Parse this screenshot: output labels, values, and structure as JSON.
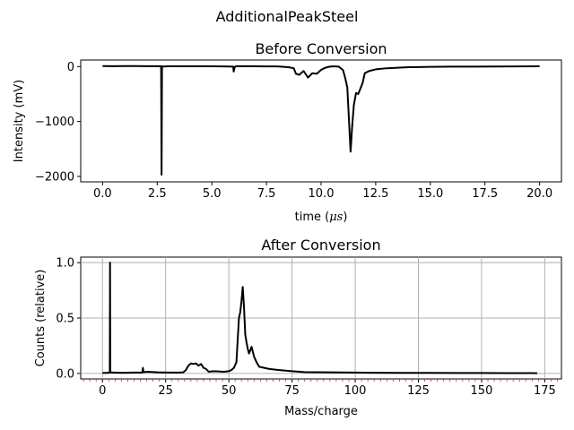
{
  "figure": {
    "suptitle": "AdditionalPeakSteel"
  },
  "colors": {
    "line": "#000000",
    "grid": "#b0b0b0",
    "minor_tick": "#d62728",
    "background": "#ffffff"
  },
  "chart_data": [
    {
      "type": "line",
      "title": "Before Conversion",
      "xlabel_text": "time (",
      "xlabel_unit": "μs",
      "xlabel_close": ")",
      "ylabel": "Intensity (mV)",
      "xlim": [
        -1.0,
        21.0
      ],
      "ylim": [
        -2100,
        120
      ],
      "xticks": [
        0.0,
        2.5,
        5.0,
        7.5,
        10.0,
        12.5,
        15.0,
        17.5,
        20.0
      ],
      "xtick_labels": [
        "0.0",
        "2.5",
        "5.0",
        "7.5",
        "10.0",
        "12.5",
        "15.0",
        "17.5",
        "20.0"
      ],
      "yticks": [
        0,
        -1000,
        -2000
      ],
      "ytick_labels": [
        "0",
        "−1000",
        "−2000"
      ],
      "grid": false,
      "series": [
        {
          "x": [
            0.0,
            0.5,
            1.0,
            1.5,
            2.0,
            2.5,
            2.68,
            2.7,
            2.72,
            2.75,
            3.0,
            4.0,
            5.0,
            5.5,
            5.98,
            6.0,
            6.05,
            6.1,
            6.5,
            7.0,
            7.5,
            8.0,
            8.5,
            8.75,
            8.85,
            9.0,
            9.2,
            9.4,
            9.6,
            9.8,
            10.0,
            10.2,
            10.4,
            10.6,
            10.8,
            11.0,
            11.1,
            11.2,
            11.28,
            11.35,
            11.42,
            11.5,
            11.6,
            11.7,
            11.8,
            11.9,
            12.0,
            12.2,
            12.5,
            13.0,
            13.5,
            14.0,
            14.5,
            15.0,
            16.0,
            17.0,
            18.0,
            19.0,
            20.0
          ],
          "y": [
            10,
            8,
            10,
            9,
            8,
            8,
            5,
            -1970,
            5,
            2,
            5,
            5,
            5,
            3,
            0,
            -90,
            -5,
            5,
            8,
            5,
            3,
            3,
            -10,
            -30,
            -130,
            -150,
            -80,
            -200,
            -120,
            -130,
            -60,
            -20,
            0,
            5,
            0,
            -60,
            -200,
            -380,
            -1000,
            -1550,
            -1100,
            -700,
            -480,
            -500,
            -400,
            -300,
            -120,
            -80,
            -50,
            -30,
            -20,
            -10,
            -8,
            -5,
            0,
            0,
            2,
            3,
            5
          ]
        }
      ]
    },
    {
      "type": "line",
      "title": "After Conversion",
      "xlabel": "Mass/charge",
      "ylabel": "Counts (relative)",
      "xlim": [
        -8.6,
        181.6
      ],
      "ylim": [
        -0.05,
        1.05
      ],
      "xticks": [
        0,
        25,
        50,
        75,
        100,
        125,
        150,
        175
      ],
      "xtick_labels": [
        "0",
        "25",
        "50",
        "75",
        "100",
        "125",
        "150",
        "175"
      ],
      "yticks": [
        0.0,
        0.5,
        1.0
      ],
      "ytick_labels": [
        "0.0",
        "0.5",
        "1.0"
      ],
      "grid": true,
      "minor_xticks_every": 2.5,
      "series": [
        {
          "x": [
            0,
            2,
            2.9,
            3.0,
            3.1,
            4,
            8,
            12,
            15.8,
            16,
            16.2,
            18,
            22,
            26,
            30,
            32,
            33,
            34,
            35,
            36,
            37,
            38,
            39,
            40,
            41,
            42,
            44,
            46,
            48,
            50,
            51,
            52,
            53,
            54,
            54.5,
            55,
            55.5,
            56,
            56.5,
            57,
            57.5,
            58,
            59,
            60,
            61,
            62,
            64,
            66,
            68,
            70,
            75,
            80,
            90,
            100,
            110,
            120,
            130,
            140,
            150,
            160,
            170,
            172
          ],
          "y": [
            0.005,
            0.006,
            0.008,
            1.0,
            0.01,
            0.008,
            0.006,
            0.008,
            0.008,
            0.05,
            0.012,
            0.015,
            0.01,
            0.008,
            0.008,
            0.01,
            0.03,
            0.07,
            0.09,
            0.085,
            0.09,
            0.07,
            0.085,
            0.05,
            0.04,
            0.015,
            0.02,
            0.018,
            0.015,
            0.02,
            0.03,
            0.05,
            0.1,
            0.5,
            0.55,
            0.65,
            0.78,
            0.6,
            0.35,
            0.28,
            0.22,
            0.18,
            0.24,
            0.15,
            0.1,
            0.06,
            0.05,
            0.04,
            0.035,
            0.03,
            0.02,
            0.012,
            0.01,
            0.008,
            0.006,
            0.005,
            0.005,
            0.004,
            0.004,
            0.003,
            0.003,
            0.002
          ]
        }
      ]
    }
  ]
}
